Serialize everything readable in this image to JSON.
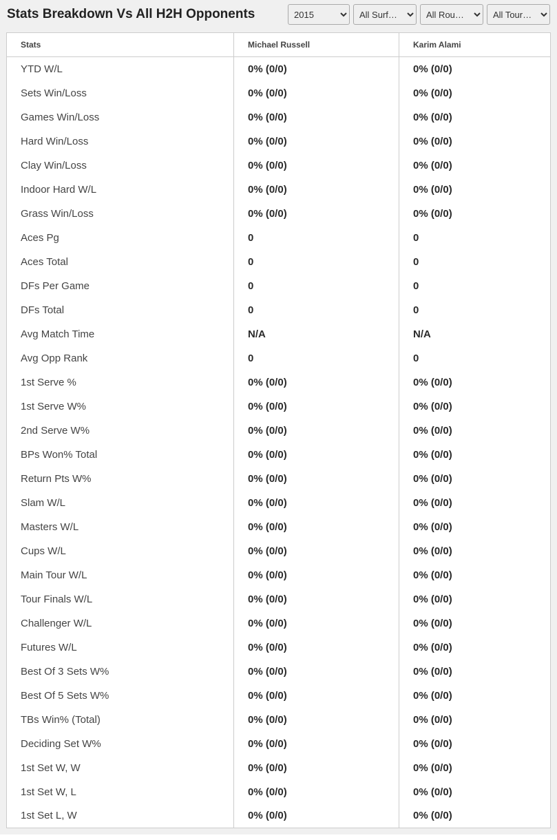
{
  "header": {
    "title": "Stats Breakdown Vs All H2H Opponents"
  },
  "filters": {
    "year": "2015",
    "surface": "All Surf…",
    "round": "All Rou…",
    "tournament": "All Tour…"
  },
  "table": {
    "columns": {
      "stats": "Stats",
      "player1": "Michael Russell",
      "player2": "Karim Alami"
    },
    "rows": [
      {
        "stat": "YTD W/L",
        "p1": "0% (0/0)",
        "p2": "0% (0/0)"
      },
      {
        "stat": "Sets Win/Loss",
        "p1": "0% (0/0)",
        "p2": "0% (0/0)"
      },
      {
        "stat": "Games Win/Loss",
        "p1": "0% (0/0)",
        "p2": "0% (0/0)"
      },
      {
        "stat": "Hard Win/Loss",
        "p1": "0% (0/0)",
        "p2": "0% (0/0)"
      },
      {
        "stat": "Clay Win/Loss",
        "p1": "0% (0/0)",
        "p2": "0% (0/0)"
      },
      {
        "stat": "Indoor Hard W/L",
        "p1": "0% (0/0)",
        "p2": "0% (0/0)"
      },
      {
        "stat": "Grass Win/Loss",
        "p1": "0% (0/0)",
        "p2": "0% (0/0)"
      },
      {
        "stat": "Aces Pg",
        "p1": "0",
        "p2": "0"
      },
      {
        "stat": "Aces Total",
        "p1": "0",
        "p2": "0"
      },
      {
        "stat": "DFs Per Game",
        "p1": "0",
        "p2": "0"
      },
      {
        "stat": "DFs Total",
        "p1": "0",
        "p2": "0"
      },
      {
        "stat": "Avg Match Time",
        "p1": "N/A",
        "p2": "N/A"
      },
      {
        "stat": "Avg Opp Rank",
        "p1": "0",
        "p2": "0"
      },
      {
        "stat": "1st Serve %",
        "p1": "0% (0/0)",
        "p2": "0% (0/0)"
      },
      {
        "stat": "1st Serve W%",
        "p1": "0% (0/0)",
        "p2": "0% (0/0)"
      },
      {
        "stat": "2nd Serve W%",
        "p1": "0% (0/0)",
        "p2": "0% (0/0)"
      },
      {
        "stat": "BPs Won% Total",
        "p1": "0% (0/0)",
        "p2": "0% (0/0)"
      },
      {
        "stat": "Return Pts W%",
        "p1": "0% (0/0)",
        "p2": "0% (0/0)"
      },
      {
        "stat": "Slam W/L",
        "p1": "0% (0/0)",
        "p2": "0% (0/0)"
      },
      {
        "stat": "Masters W/L",
        "p1": "0% (0/0)",
        "p2": "0% (0/0)"
      },
      {
        "stat": "Cups W/L",
        "p1": "0% (0/0)",
        "p2": "0% (0/0)"
      },
      {
        "stat": "Main Tour W/L",
        "p1": "0% (0/0)",
        "p2": "0% (0/0)"
      },
      {
        "stat": "Tour Finals W/L",
        "p1": "0% (0/0)",
        "p2": "0% (0/0)"
      },
      {
        "stat": "Challenger W/L",
        "p1": "0% (0/0)",
        "p2": "0% (0/0)"
      },
      {
        "stat": "Futures W/L",
        "p1": "0% (0/0)",
        "p2": "0% (0/0)"
      },
      {
        "stat": "Best Of 3 Sets W%",
        "p1": "0% (0/0)",
        "p2": "0% (0/0)"
      },
      {
        "stat": "Best Of 5 Sets W%",
        "p1": "0% (0/0)",
        "p2": "0% (0/0)"
      },
      {
        "stat": "TBs Win% (Total)",
        "p1": "0% (0/0)",
        "p2": "0% (0/0)"
      },
      {
        "stat": "Deciding Set W%",
        "p1": "0% (0/0)",
        "p2": "0% (0/0)"
      },
      {
        "stat": "1st Set W, W",
        "p1": "0% (0/0)",
        "p2": "0% (0/0)"
      },
      {
        "stat": "1st Set W, L",
        "p1": "0% (0/0)",
        "p2": "0% (0/0)"
      },
      {
        "stat": "1st Set L, W",
        "p1": "0% (0/0)",
        "p2": "0% (0/0)"
      }
    ]
  }
}
